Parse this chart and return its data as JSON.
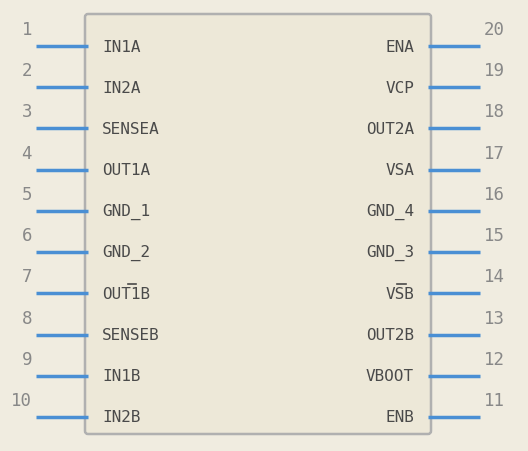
{
  "bg_color": "#f0ece0",
  "box_edge_color": "#b0b0b0",
  "box_fill_color": "#ede8d8",
  "pin_color": "#4a8fd4",
  "text_color": "#4a4a4a",
  "num_color": "#888888",
  "left_pins": [
    {
      "num": 1,
      "name": "IN1A",
      "overbar_chars": []
    },
    {
      "num": 2,
      "name": "IN2A",
      "overbar_chars": []
    },
    {
      "num": 3,
      "name": "SENSEA",
      "overbar_chars": []
    },
    {
      "num": 4,
      "name": "OUT1A",
      "overbar_chars": []
    },
    {
      "num": 5,
      "name": "GND_1",
      "overbar_chars": []
    },
    {
      "num": 6,
      "name": "GND_2",
      "overbar_chars": []
    },
    {
      "num": 7,
      "name": "OUT1B",
      "overbar_chars": [
        3
      ]
    },
    {
      "num": 8,
      "name": "SENSEB",
      "overbar_chars": []
    },
    {
      "num": 9,
      "name": "IN1B",
      "overbar_chars": []
    },
    {
      "num": 10,
      "name": "IN2B",
      "overbar_chars": []
    }
  ],
  "right_pins": [
    {
      "num": 20,
      "name": "ENA",
      "overbar_chars": []
    },
    {
      "num": 19,
      "name": "VCP",
      "overbar_chars": []
    },
    {
      "num": 18,
      "name": "OUT2A",
      "overbar_chars": []
    },
    {
      "num": 17,
      "name": "VSA",
      "overbar_chars": []
    },
    {
      "num": 16,
      "name": "GND_4",
      "overbar_chars": []
    },
    {
      "num": 15,
      "name": "GND_3",
      "overbar_chars": []
    },
    {
      "num": 14,
      "name": "VSB",
      "overbar_chars": [
        1
      ]
    },
    {
      "num": 13,
      "name": "OUT2B",
      "overbar_chars": []
    },
    {
      "num": 12,
      "name": "VBOOT",
      "overbar_chars": []
    },
    {
      "num": 11,
      "name": "ENB",
      "overbar_chars": []
    }
  ]
}
